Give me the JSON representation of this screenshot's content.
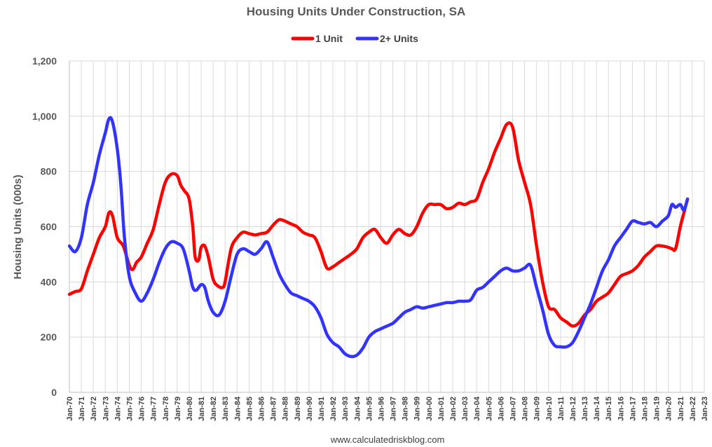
{
  "chart_data": {
    "type": "line",
    "title": "Housing Units Under Construction, SA",
    "ylabel": "Housing Units (000s)",
    "xlabel": "",
    "ylim": [
      0,
      1200
    ],
    "yticks": [
      0,
      200,
      400,
      600,
      800,
      1000,
      1200
    ],
    "ytick_labels": [
      "0",
      "200",
      "400",
      "600",
      "800",
      "1,000",
      "1,200"
    ],
    "xlim": [
      1970,
      2023
    ],
    "xtick_labels": [
      "Jan-70",
      "Jan-71",
      "Jan-72",
      "Jan-73",
      "Jan-74",
      "Jan-75",
      "Jan-76",
      "Jan-77",
      "Jan-78",
      "Jan-79",
      "Jan-80",
      "Jan-81",
      "Jan-82",
      "Jan-83",
      "Jan-84",
      "Jan-85",
      "Jan-86",
      "Jan-87",
      "Jan-88",
      "Jan-89",
      "Jan-90",
      "Jan-91",
      "Jan-92",
      "Jan-93",
      "Jan-94",
      "Jan-95",
      "Jan-96",
      "Jan-97",
      "Jan-98",
      "Jan-99",
      "Jan-00",
      "Jan-01",
      "Jan-02",
      "Jan-03",
      "Jan-04",
      "Jan-05",
      "Jan-06",
      "Jan-07",
      "Jan-08",
      "Jan-09",
      "Jan-10",
      "Jan-11",
      "Jan-12",
      "Jan-13",
      "Jan-14",
      "Jan-15",
      "Jan-16",
      "Jan-17",
      "Jan-18",
      "Jan-19",
      "Jan-20",
      "Jan-21",
      "Jan-22",
      "Jan-23"
    ],
    "grid": true,
    "legend_position": "top-center",
    "source": "www.calculatedriskblog.com",
    "series": [
      {
        "name": "1 Unit",
        "color": "#ff0000",
        "x": [
          1970.0,
          1970.5,
          1971.0,
          1971.5,
          1972.0,
          1972.5,
          1973.0,
          1973.3,
          1973.6,
          1974.0,
          1974.5,
          1975.0,
          1975.3,
          1975.6,
          1976.0,
          1976.5,
          1977.0,
          1977.5,
          1978.0,
          1978.5,
          1979.0,
          1979.3,
          1979.6,
          1980.0,
          1980.3,
          1980.5,
          1980.8,
          1981.0,
          1981.3,
          1981.6,
          1982.0,
          1982.4,
          1982.8,
          1983.0,
          1983.5,
          1984.0,
          1984.5,
          1985.0,
          1985.5,
          1986.0,
          1986.5,
          1987.0,
          1987.5,
          1988.0,
          1988.5,
          1989.0,
          1989.5,
          1990.0,
          1990.5,
          1991.0,
          1991.5,
          1992.0,
          1992.5,
          1993.0,
          1993.5,
          1994.0,
          1994.5,
          1995.0,
          1995.5,
          1996.0,
          1996.5,
          1997.0,
          1997.5,
          1998.0,
          1998.5,
          1999.0,
          1999.5,
          2000.0,
          2000.5,
          2001.0,
          2001.5,
          2002.0,
          2002.5,
          2003.0,
          2003.5,
          2004.0,
          2004.5,
          2005.0,
          2005.5,
          2006.0,
          2006.5,
          2007.0,
          2007.5,
          2008.0,
          2008.5,
          2009.0,
          2009.5,
          2010.0,
          2010.5,
          2011.0,
          2011.5,
          2012.0,
          2012.5,
          2013.0,
          2013.5,
          2014.0,
          2014.5,
          2015.0,
          2015.5,
          2016.0,
          2016.5,
          2017.0,
          2017.5,
          2018.0,
          2018.5,
          2019.0,
          2019.5,
          2020.0,
          2020.3,
          2020.6,
          2021.0,
          2021.3,
          2021.6
        ],
        "values": [
          355,
          365,
          375,
          440,
          500,
          560,
          600,
          650,
          640,
          560,
          530,
          460,
          445,
          470,
          490,
          540,
          590,
          680,
          760,
          790,
          785,
          750,
          730,
          700,
          600,
          490,
          480,
          525,
          530,
          490,
          410,
          385,
          380,
          400,
          520,
          560,
          580,
          575,
          570,
          575,
          580,
          605,
          625,
          620,
          610,
          600,
          580,
          570,
          560,
          510,
          450,
          455,
          470,
          485,
          500,
          520,
          560,
          580,
          590,
          560,
          540,
          570,
          590,
          575,
          570,
          600,
          650,
          680,
          680,
          680,
          665,
          670,
          685,
          680,
          690,
          700,
          760,
          810,
          870,
          920,
          970,
          960,
          840,
          760,
          680,
          530,
          400,
          310,
          300,
          270,
          255,
          240,
          250,
          280,
          300,
          330,
          345,
          360,
          390,
          420,
          430,
          440,
          460,
          490,
          510,
          530,
          530,
          525,
          520,
          520,
          600,
          650,
          700
        ]
      },
      {
        "name": "2+ Units",
        "color": "#3333ff",
        "x": [
          1970.0,
          1970.5,
          1971.0,
          1971.5,
          1972.0,
          1972.5,
          1973.0,
          1973.3,
          1973.6,
          1974.0,
          1974.3,
          1974.6,
          1975.0,
          1975.5,
          1976.0,
          1976.5,
          1977.0,
          1977.5,
          1978.0,
          1978.5,
          1979.0,
          1979.5,
          1980.0,
          1980.3,
          1980.6,
          1981.0,
          1981.3,
          1981.6,
          1982.0,
          1982.5,
          1983.0,
          1983.5,
          1984.0,
          1984.5,
          1985.0,
          1985.5,
          1986.0,
          1986.5,
          1987.0,
          1987.5,
          1988.0,
          1988.5,
          1989.0,
          1989.5,
          1990.0,
          1990.5,
          1991.0,
          1991.5,
          1992.0,
          1992.5,
          1993.0,
          1993.5,
          1994.0,
          1994.5,
          1995.0,
          1995.5,
          1996.0,
          1996.5,
          1997.0,
          1997.5,
          1998.0,
          1998.5,
          1999.0,
          1999.5,
          2000.0,
          2000.5,
          2001.0,
          2001.5,
          2002.0,
          2002.5,
          2003.0,
          2003.5,
          2004.0,
          2004.5,
          2005.0,
          2005.5,
          2006.0,
          2006.5,
          2007.0,
          2007.5,
          2008.0,
          2008.5,
          2009.0,
          2009.5,
          2010.0,
          2010.5,
          2011.0,
          2011.5,
          2012.0,
          2012.5,
          2013.0,
          2013.5,
          2014.0,
          2014.5,
          2015.0,
          2015.5,
          2016.0,
          2016.5,
          2017.0,
          2017.5,
          2018.0,
          2018.5,
          2019.0,
          2019.5,
          2020.0,
          2020.3,
          2020.6,
          2021.0,
          2021.3,
          2021.6
        ],
        "values": [
          530,
          510,
          560,
          680,
          760,
          860,
          940,
          990,
          980,
          880,
          750,
          560,
          420,
          360,
          330,
          360,
          410,
          470,
          520,
          545,
          540,
          520,
          440,
          380,
          370,
          390,
          380,
          330,
          290,
          280,
          330,
          420,
          500,
          520,
          510,
          500,
          520,
          545,
          490,
          430,
          390,
          360,
          350,
          340,
          330,
          310,
          270,
          210,
          180,
          165,
          140,
          130,
          135,
          160,
          200,
          220,
          230,
          240,
          250,
          270,
          290,
          300,
          310,
          305,
          310,
          315,
          320,
          325,
          325,
          330,
          330,
          335,
          370,
          380,
          400,
          420,
          440,
          450,
          440,
          440,
          450,
          460,
          380,
          300,
          210,
          170,
          165,
          165,
          180,
          220,
          270,
          320,
          380,
          440,
          480,
          530,
          560,
          590,
          620,
          615,
          610,
          615,
          600,
          620,
          640,
          680,
          670,
          680,
          660,
          700
        ]
      }
    ]
  }
}
